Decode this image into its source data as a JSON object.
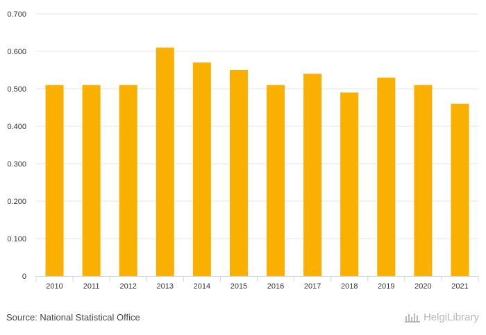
{
  "chart_data": {
    "type": "bar",
    "title": "",
    "xlabel": "",
    "ylabel": "",
    "categories": [
      "2010",
      "2011",
      "2012",
      "2013",
      "2014",
      "2015",
      "2016",
      "2017",
      "2018",
      "2019",
      "2020",
      "2021"
    ],
    "values": [
      0.51,
      0.51,
      0.51,
      0.61,
      0.57,
      0.55,
      0.51,
      0.54,
      0.49,
      0.53,
      0.51,
      0.46
    ],
    "ylim": [
      0,
      0.7
    ],
    "yticks": [
      0,
      0.1,
      0.2,
      0.3,
      0.4,
      0.5,
      0.6,
      0.7
    ],
    "ytick_labels": [
      "0",
      "0.100",
      "0.200",
      "0.300",
      "0.400",
      "0.500",
      "0.600",
      "0.700"
    ],
    "grid": true,
    "bar_color": "#F9B000",
    "grid_color": "#E6E6E6",
    "axis_color": "#CCD6EB"
  },
  "footer": {
    "source": "Source: National Statistical Office",
    "logo_text": "HelgiLibrary"
  }
}
